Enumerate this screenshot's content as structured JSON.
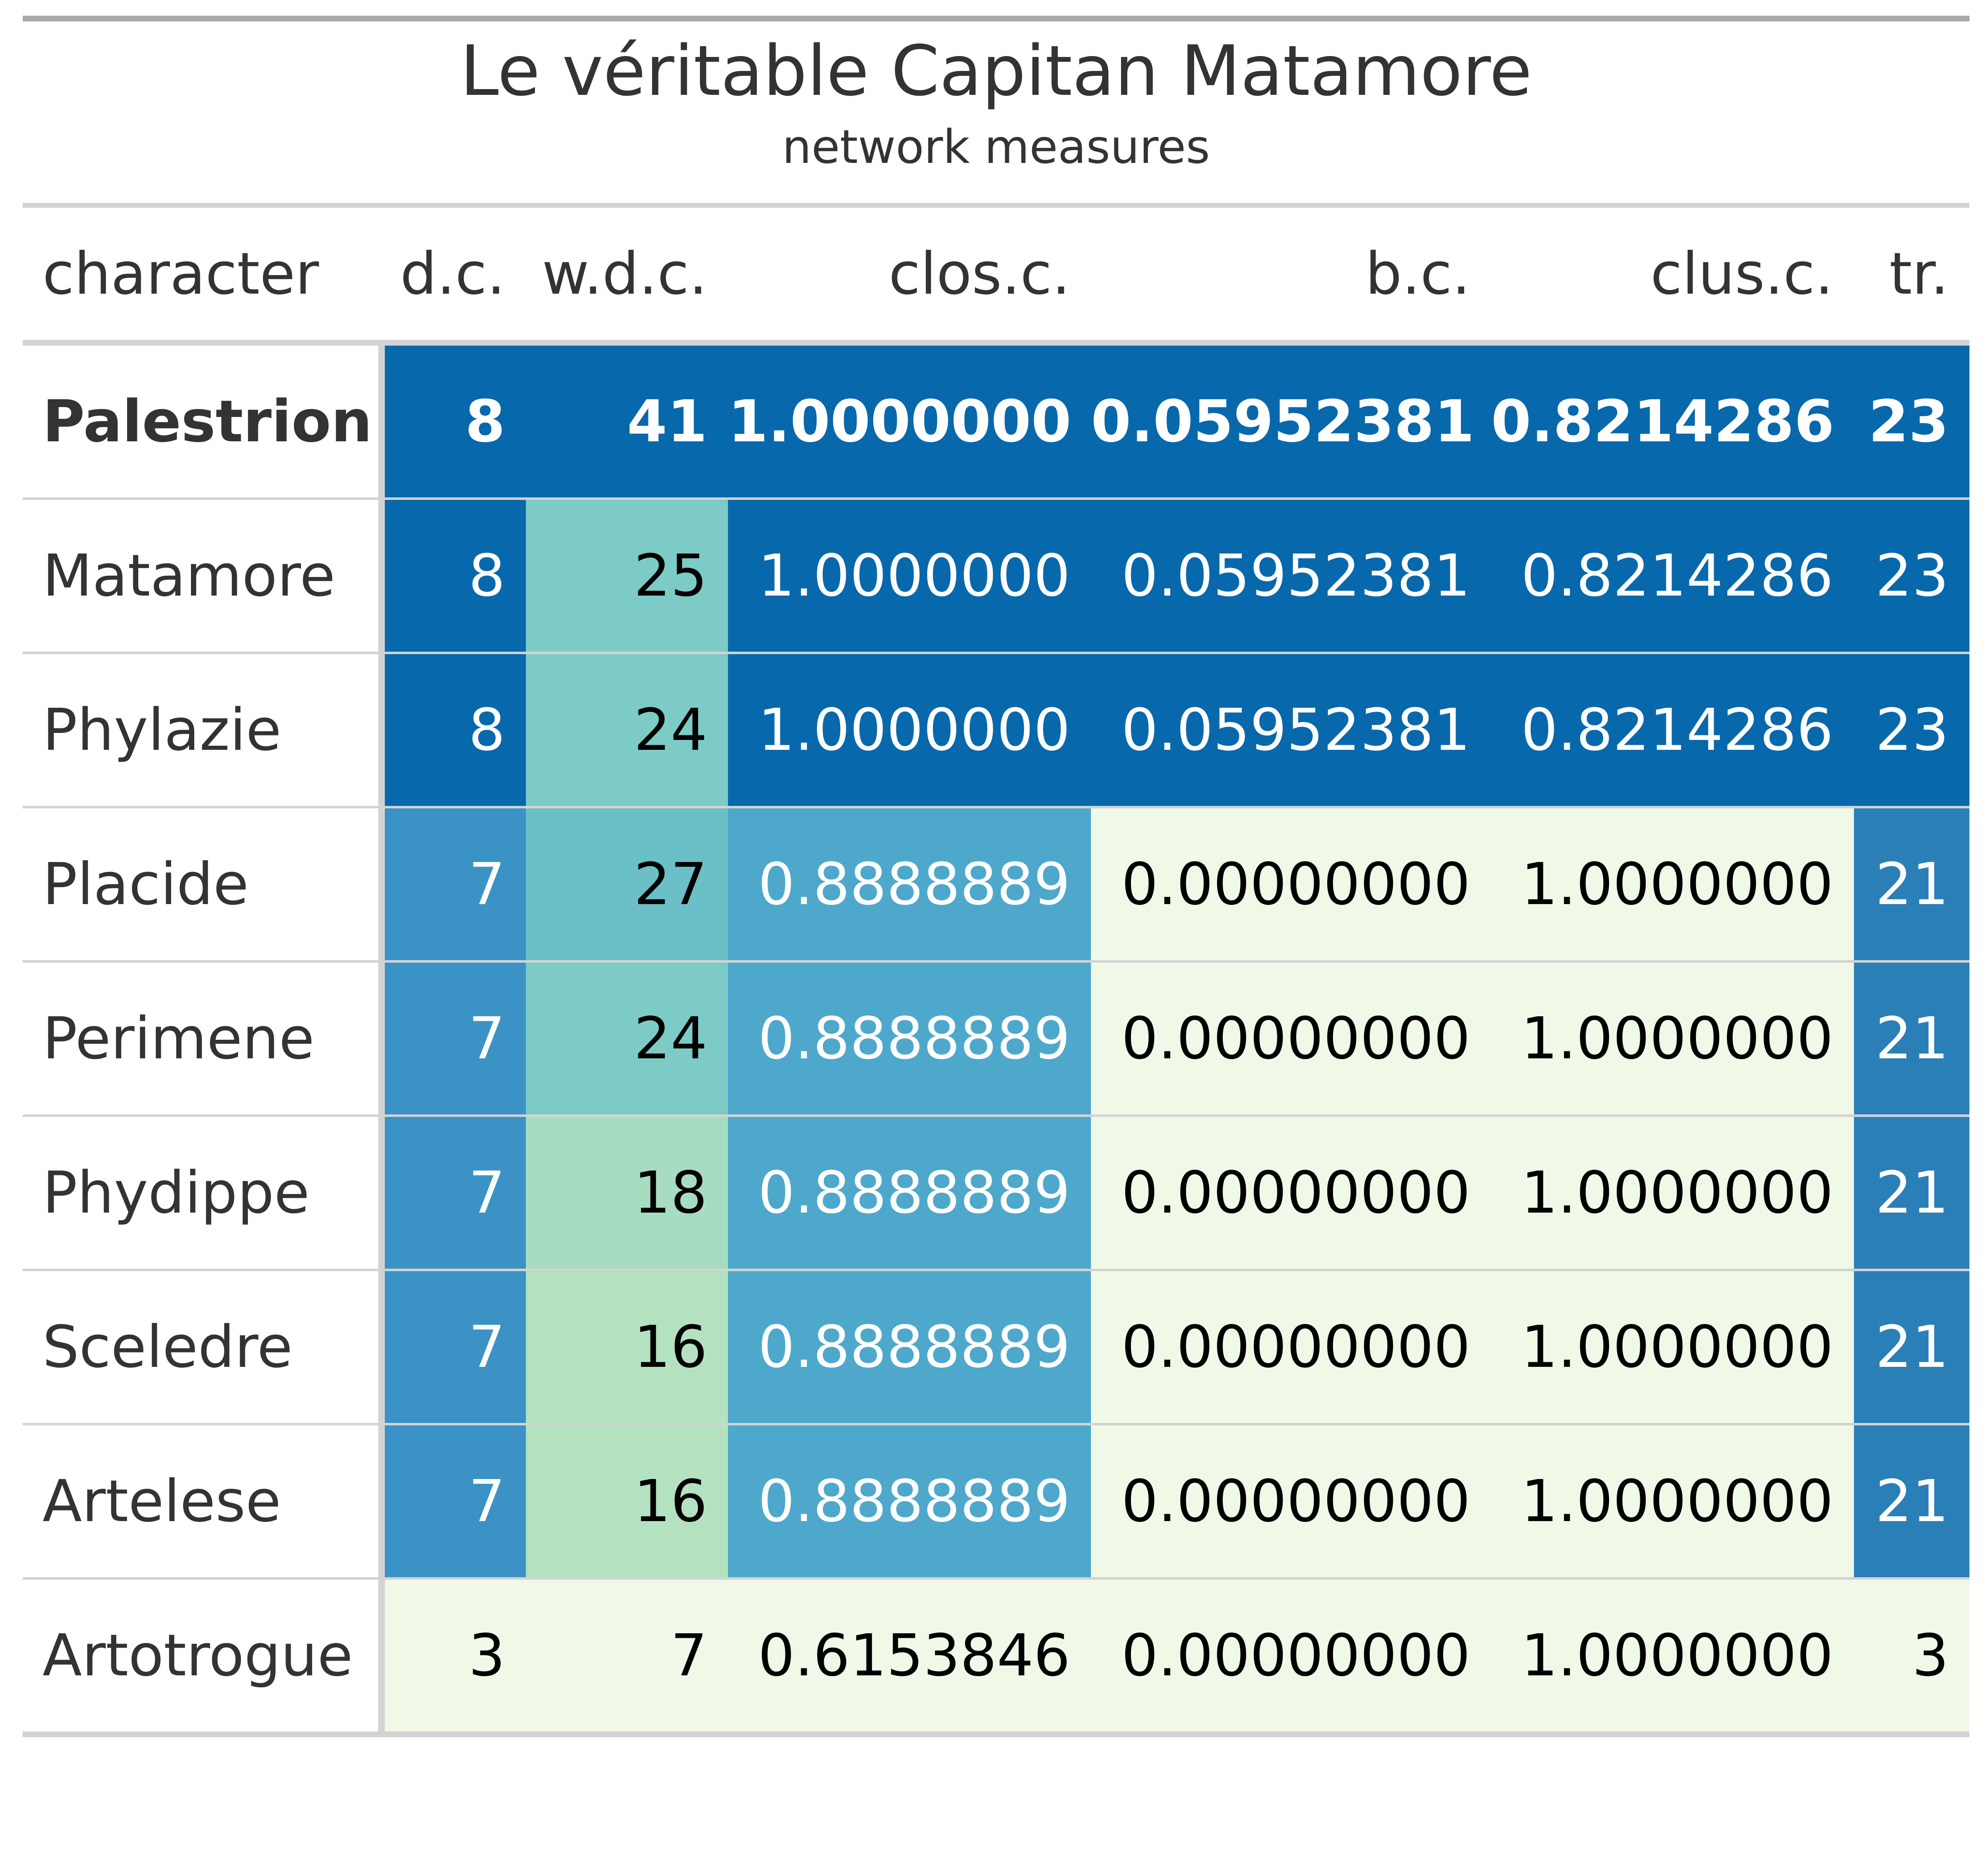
{
  "header": {
    "title": "Le véritable Capitan Matamore",
    "subtitle": "network measures"
  },
  "columns": [
    "character",
    "d.c.",
    "w.d.c.",
    "clos.c.",
    "b.c.",
    "clus.c.",
    "tr."
  ],
  "rows": [
    {
      "character": "Palestrion",
      "dc": "8",
      "wdc": "41",
      "closc": "1.0000000",
      "bc": "0.05952381",
      "clusc": "0.8214286",
      "tr": "23",
      "bold": true
    },
    {
      "character": "Matamore",
      "dc": "8",
      "wdc": "25",
      "closc": "1.0000000",
      "bc": "0.05952381",
      "clusc": "0.8214286",
      "tr": "23",
      "bold": false
    },
    {
      "character": "Phylazie",
      "dc": "8",
      "wdc": "24",
      "closc": "1.0000000",
      "bc": "0.05952381",
      "clusc": "0.8214286",
      "tr": "23",
      "bold": false
    },
    {
      "character": "Placide",
      "dc": "7",
      "wdc": "27",
      "closc": "0.8888889",
      "bc": "0.00000000",
      "clusc": "1.0000000",
      "tr": "21",
      "bold": false
    },
    {
      "character": "Perimene",
      "dc": "7",
      "wdc": "24",
      "closc": "0.8888889",
      "bc": "0.00000000",
      "clusc": "1.0000000",
      "tr": "21",
      "bold": false
    },
    {
      "character": "Phydippe",
      "dc": "7",
      "wdc": "18",
      "closc": "0.8888889",
      "bc": "0.00000000",
      "clusc": "1.0000000",
      "tr": "21",
      "bold": false
    },
    {
      "character": "Sceledre",
      "dc": "7",
      "wdc": "16",
      "closc": "0.8888889",
      "bc": "0.00000000",
      "clusc": "1.0000000",
      "tr": "21",
      "bold": false
    },
    {
      "character": "Artelese",
      "dc": "7",
      "wdc": "16",
      "closc": "0.8888889",
      "bc": "0.00000000",
      "clusc": "1.0000000",
      "tr": "21",
      "bold": false
    },
    {
      "character": "Artotrogue",
      "dc": "3",
      "wdc": "7",
      "closc": "0.6153846",
      "bc": "0.00000000",
      "clusc": "1.0000000",
      "tr": "3",
      "bold": false
    }
  ],
  "cell_colors": {
    "dc": {
      "8": "#0868ac",
      "7": "#3a93c4",
      "3": "#f0f8e8"
    },
    "wdc": {
      "41": "#0868ac",
      "27": "#6bbfc6",
      "25": "#7ccbc6",
      "24": "#7ccbc6",
      "18": "#a8dcc1",
      "16": "#b4e2c0",
      "7": "#f0f8e8"
    },
    "closc": {
      "1.0000000": "#0868ac",
      "0.8888889": "#4ea8cc",
      "0.6153846": "#f0f8e8"
    },
    "bc": {
      "0.05952381": "#0868ac",
      "0.00000000": "#f0f8e8"
    },
    "clusc": {
      "0.8214286": "#0868ac",
      "1.0000000": "#f0f8e8"
    },
    "tr": {
      "23": "#0868ac",
      "21": "#2b7fb7",
      "3": "#f0f8e8"
    }
  },
  "text_colors": {
    "dc": {
      "8": "#ffffff",
      "7": "#ffffff",
      "3": "#000000"
    },
    "wdc": {
      "41": "#ffffff",
      "27": "#000000",
      "25": "#000000",
      "24": "#000000",
      "18": "#000000",
      "16": "#000000",
      "7": "#000000"
    },
    "closc": {
      "1.0000000": "#ffffff",
      "0.8888889": "#ffffff",
      "0.6153846": "#000000"
    },
    "bc": {
      "0.05952381": "#ffffff",
      "0.00000000": "#000000"
    },
    "clusc": {
      "0.8214286": "#ffffff",
      "1.0000000": "#000000"
    },
    "tr": {
      "23": "#ffffff",
      "21": "#ffffff",
      "3": "#000000"
    }
  },
  "chart_data": {
    "type": "table",
    "title": "Le véritable Capitan Matamore",
    "subtitle": "network measures",
    "columns": [
      "character",
      "d.c.",
      "w.d.c.",
      "clos.c.",
      "b.c.",
      "clus.c.",
      "tr."
    ],
    "rows": [
      [
        "Palestrion",
        8,
        41,
        1.0,
        0.05952381,
        0.8214286,
        23
      ],
      [
        "Matamore",
        8,
        25,
        1.0,
        0.05952381,
        0.8214286,
        23
      ],
      [
        "Phylazie",
        8,
        24,
        1.0,
        0.05952381,
        0.8214286,
        23
      ],
      [
        "Placide",
        7,
        27,
        0.8888889,
        0.0,
        1.0,
        21
      ],
      [
        "Perimene",
        7,
        24,
        0.8888889,
        0.0,
        1.0,
        21
      ],
      [
        "Phydippe",
        7,
        18,
        0.8888889,
        0.0,
        1.0,
        21
      ],
      [
        "Sceledre",
        7,
        16,
        0.8888889,
        0.0,
        1.0,
        21
      ],
      [
        "Artelese",
        7,
        16,
        0.8888889,
        0.0,
        1.0,
        21
      ],
      [
        "Artotrogue",
        3,
        7,
        0.6153846,
        0.0,
        1.0,
        3
      ]
    ]
  }
}
